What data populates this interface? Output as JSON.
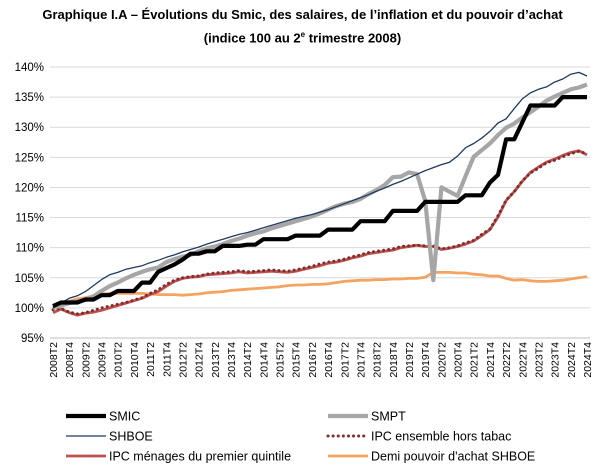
{
  "chart_data": {
    "type": "line",
    "title": "Graphique I.A – Évolutions du Smic, des salaires, de l’inflation et du pouvoir d’achat",
    "subtitle": "(indice 100 au 2e trimestre 2008)",
    "subtitle_main": "(indice 100 au 2",
    "subtitle_sup": "e",
    "subtitle_end": " trimestre 2008)",
    "xlabel": "",
    "ylabel": "",
    "ylim": [
      95,
      140
    ],
    "yticks": [
      "95%",
      "100%",
      "105%",
      "110%",
      "115%",
      "120%",
      "125%",
      "130%",
      "135%",
      "140%"
    ],
    "grid": "horizontal",
    "legend_position": "bottom",
    "x": [
      "2008T2",
      "2008T3",
      "2008T4",
      "2009T1",
      "2009T2",
      "2009T3",
      "2009T4",
      "2010T1",
      "2010T2",
      "2010T3",
      "2010T4",
      "2011T1",
      "2011T2",
      "2011T3",
      "2011T4",
      "2012T1",
      "2012T2",
      "2012T3",
      "2012T4",
      "2013T1",
      "2013T2",
      "2013T3",
      "2013T4",
      "2014T1",
      "2014T2",
      "2014T3",
      "2014T4",
      "2015T1",
      "2015T2",
      "2015T3",
      "2015T4",
      "2016T1",
      "2016T2",
      "2016T3",
      "2016T4",
      "2017T1",
      "2017T2",
      "2017T3",
      "2017T4",
      "2018T1",
      "2018T2",
      "2018T3",
      "2018T4",
      "2019T1",
      "2019T2",
      "2019T3",
      "2019T4",
      "2020T1",
      "2020T2",
      "2020T3",
      "2020T4",
      "2021T1",
      "2021T2",
      "2021T3",
      "2021T4",
      "2022T1",
      "2022T2",
      "2022T3",
      "2022T4",
      "2023T1",
      "2023T2",
      "2023T3",
      "2023T4",
      "2024T1",
      "2024T2",
      "2024T3",
      "2024T4"
    ],
    "x_tick_labels": [
      "2008T2",
      "2008T4",
      "2009T2",
      "2009T4",
      "2010T2",
      "2010T4",
      "2011T2",
      "2011T4",
      "2012T2",
      "2012T4",
      "2013T2",
      "2013T4",
      "2014T2",
      "2014T4",
      "2015T2",
      "2015T4",
      "2016T2",
      "2016T4",
      "2017T2",
      "2017T4",
      "2018T2",
      "2018T4",
      "2019T2",
      "2019T4",
      "2020T2",
      "2020T4",
      "2021T2",
      "2021T4",
      "2022T2",
      "2022T4",
      "2023T2",
      "2023T4",
      "2024T2",
      "2024T4"
    ],
    "series": [
      {
        "name": "SMIC",
        "color": "#000000",
        "style": "thick",
        "values": [
          100.3,
          100.9,
          100.9,
          100.9,
          101.4,
          101.4,
          102.1,
          102.1,
          102.8,
          102.8,
          102.8,
          104.2,
          104.2,
          106.0,
          106.6,
          107.2,
          108.0,
          109.0,
          109.0,
          109.4,
          109.4,
          110.3,
          110.3,
          110.3,
          110.5,
          110.5,
          111.4,
          111.4,
          111.4,
          111.4,
          112.0,
          112.0,
          112.0,
          112.0,
          113.0,
          113.0,
          113.0,
          113.0,
          114.4,
          114.4,
          114.4,
          114.4,
          116.1,
          116.1,
          116.1,
          116.1,
          117.6,
          117.6,
          117.6,
          117.6,
          117.6,
          118.7,
          118.7,
          118.7,
          120.8,
          122.1,
          128.0,
          128.0,
          130.8,
          133.6,
          133.6,
          133.6,
          133.6,
          135.0,
          135.0,
          135.0,
          135.0
        ]
      },
      {
        "name": "SMPT",
        "color": "#a6a6a6",
        "style": "thick",
        "values": [
          100.0,
          100.4,
          100.8,
          101.1,
          101.3,
          101.9,
          102.8,
          103.6,
          104.2,
          104.9,
          105.5,
          106.0,
          106.4,
          106.7,
          107.6,
          108.1,
          108.5,
          108.8,
          109.4,
          109.9,
          110.2,
          110.6,
          111.1,
          111.5,
          112.0,
          112.4,
          112.7,
          113.2,
          113.6,
          114.0,
          114.4,
          114.8,
          115.2,
          115.7,
          116.3,
          116.9,
          117.3,
          117.6,
          118.1,
          118.9,
          119.6,
          120.4,
          121.7,
          121.8,
          122.5,
          122.2,
          117.8,
          104.6,
          120.0,
          119.3,
          118.6,
          121.9,
          125.1,
          126.2,
          127.3,
          128.7,
          129.9,
          130.6,
          131.6,
          132.5,
          133.4,
          134.4,
          135.1,
          135.7,
          136.3,
          136.6,
          137.1
        ]
      },
      {
        "name": "SHBOE",
        "color": "#1f3a5f",
        "style": "thin",
        "values": [
          100.0,
          100.8,
          101.6,
          102.0,
          102.7,
          103.7,
          104.7,
          105.5,
          105.9,
          106.4,
          106.7,
          107.0,
          107.5,
          107.9,
          108.4,
          108.8,
          109.3,
          109.7,
          110.1,
          110.6,
          111.0,
          111.4,
          111.8,
          112.2,
          112.5,
          112.9,
          113.3,
          113.7,
          114.1,
          114.5,
          114.9,
          115.2,
          115.5,
          115.9,
          116.3,
          116.8,
          117.3,
          117.8,
          118.3,
          118.8,
          119.4,
          119.9,
          120.5,
          121.0,
          121.6,
          122.2,
          122.8,
          123.3,
          123.8,
          124.2,
          125.2,
          126.6,
          127.3,
          128.2,
          129.3,
          130.7,
          131.4,
          133.1,
          134.7,
          135.7,
          136.3,
          136.7,
          137.5,
          138.0,
          138.8,
          139.1,
          138.5
        ]
      },
      {
        "name": "IPC ensemble hors tabac",
        "color": "#7b2f2f",
        "style": "dotted",
        "values": [
          99.7,
          99.9,
          99.3,
          99.0,
          99.2,
          99.6,
          100.0,
          100.3,
          100.6,
          100.9,
          101.3,
          101.7,
          102.4,
          103.0,
          103.9,
          104.6,
          105.0,
          105.2,
          105.3,
          105.6,
          105.8,
          105.9,
          106.0,
          106.2,
          106.0,
          106.1,
          106.2,
          106.3,
          106.2,
          106.1,
          106.3,
          106.6,
          106.9,
          107.3,
          107.6,
          107.8,
          108.1,
          108.5,
          108.8,
          109.2,
          109.4,
          109.6,
          109.8,
          110.2,
          110.3,
          110.4,
          110.3,
          110.3,
          109.8,
          110.0,
          110.3,
          110.8,
          111.2,
          112.2,
          113.1,
          115.3,
          117.9,
          119.3,
          121.1,
          122.4,
          123.2,
          124.1,
          124.5,
          125.1,
          125.6,
          126.0,
          125.6
        ]
      },
      {
        "name": "IPC ménages du premier quintile",
        "color": "#c0504d",
        "style": "thick-medium",
        "values": [
          99.2,
          99.8,
          99.2,
          98.8,
          99.1,
          99.3,
          99.6,
          100.0,
          100.4,
          100.8,
          101.2,
          101.6,
          102.2,
          102.7,
          103.6,
          104.4,
          104.9,
          105.1,
          105.2,
          105.5,
          105.6,
          105.7,
          105.8,
          106.0,
          105.8,
          105.9,
          106.0,
          106.1,
          106.0,
          105.9,
          106.1,
          106.4,
          106.7,
          107.0,
          107.4,
          107.6,
          107.9,
          108.3,
          108.6,
          109.0,
          109.2,
          109.4,
          109.6,
          110.0,
          110.2,
          110.4,
          110.2,
          110.2,
          109.7,
          109.9,
          110.2,
          110.6,
          111.1,
          112.0,
          113.0,
          115.1,
          117.8,
          119.3,
          121.0,
          122.5,
          123.4,
          124.2,
          124.7,
          125.3,
          125.8,
          126.1,
          125.4
        ]
      },
      {
        "name": "Demi pouvoir d'achat SHBOE",
        "color": "#f4a460",
        "style": "thick-medium",
        "values": [
          100.1,
          100.4,
          101.1,
          101.5,
          101.7,
          102.0,
          102.3,
          102.4,
          102.4,
          102.4,
          102.4,
          102.4,
          102.3,
          102.2,
          102.2,
          102.2,
          102.1,
          102.2,
          102.3,
          102.5,
          102.6,
          102.7,
          102.9,
          103.0,
          103.1,
          103.2,
          103.3,
          103.4,
          103.5,
          103.7,
          103.8,
          103.8,
          103.9,
          103.9,
          104.0,
          104.2,
          104.4,
          104.5,
          104.6,
          104.6,
          104.7,
          104.7,
          104.8,
          104.8,
          104.9,
          104.9,
          105.1,
          105.9,
          105.9,
          105.9,
          105.8,
          105.8,
          105.6,
          105.5,
          105.3,
          105.3,
          104.9,
          104.6,
          104.7,
          104.5,
          104.4,
          104.4,
          104.5,
          104.6,
          104.8,
          105.0,
          105.2
        ]
      }
    ]
  }
}
